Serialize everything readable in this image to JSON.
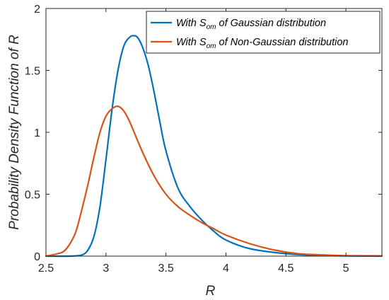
{
  "chart_data": {
    "type": "line",
    "xlabel": "R",
    "ylabel": "Probability Density Function of R",
    "xlim": [
      2.5,
      5.3
    ],
    "ylim": [
      0,
      2
    ],
    "xticks": [
      2.5,
      3,
      3.5,
      4,
      4.5,
      5
    ],
    "xtick_labels": [
      "2.5",
      "3",
      "3.5",
      "4",
      "4.5",
      "5"
    ],
    "yticks": [
      0,
      0.5,
      1,
      1.5,
      2
    ],
    "ytick_labels": [
      "0",
      "0.5",
      "1",
      "1.5",
      "2"
    ],
    "grid": false,
    "legend_position": "top-right",
    "series": [
      {
        "name_prefix": "With S",
        "name_subscript": "om",
        "name_suffix": " of Gaussian distribution",
        "color": "#0072BD",
        "x": [
          2.5,
          2.7,
          2.8,
          2.85,
          2.9,
          2.95,
          3.0,
          3.05,
          3.1,
          3.15,
          3.2,
          3.23,
          3.26,
          3.3,
          3.35,
          3.4,
          3.45,
          3.5,
          3.6,
          3.7,
          3.8,
          3.9,
          4.0,
          4.2,
          4.5,
          4.8,
          5.3
        ],
        "y": [
          0,
          0,
          0.01,
          0.05,
          0.16,
          0.4,
          0.78,
          1.18,
          1.5,
          1.7,
          1.77,
          1.78,
          1.77,
          1.7,
          1.55,
          1.33,
          1.08,
          0.85,
          0.55,
          0.4,
          0.29,
          0.2,
          0.13,
          0.06,
          0.02,
          0.005,
          0
        ]
      },
      {
        "name_prefix": "With S",
        "name_subscript": "om",
        "name_suffix": " of Non-Gaussian distribution",
        "color": "#D95319",
        "x": [
          2.5,
          2.6,
          2.65,
          2.7,
          2.75,
          2.8,
          2.85,
          2.9,
          2.95,
          3.0,
          3.05,
          3.1,
          3.15,
          3.2,
          3.3,
          3.4,
          3.5,
          3.6,
          3.7,
          3.8,
          3.9,
          4.0,
          4.2,
          4.4,
          4.6,
          4.8,
          5.0,
          5.3
        ],
        "y": [
          0,
          0.02,
          0.04,
          0.1,
          0.2,
          0.38,
          0.58,
          0.8,
          1.0,
          1.13,
          1.19,
          1.21,
          1.17,
          1.08,
          0.85,
          0.65,
          0.5,
          0.4,
          0.33,
          0.27,
          0.22,
          0.17,
          0.1,
          0.05,
          0.02,
          0.01,
          0.004,
          0.002
        ]
      }
    ]
  }
}
